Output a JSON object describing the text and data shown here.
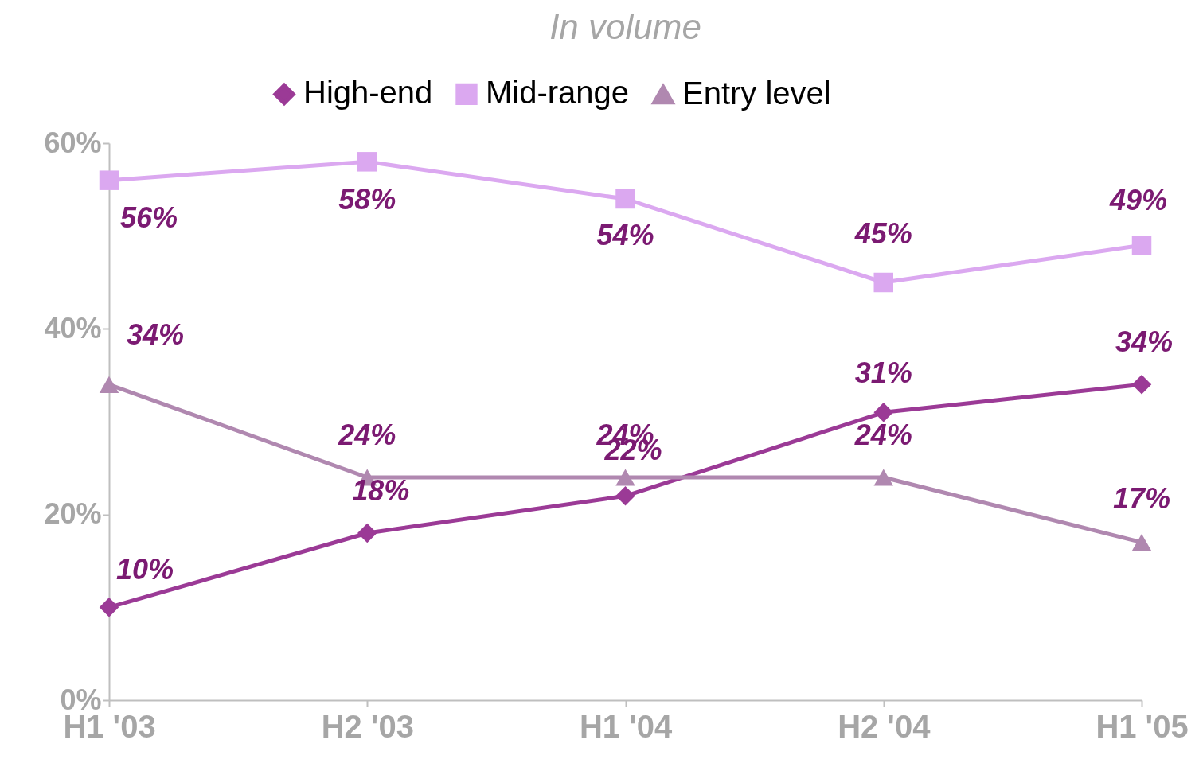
{
  "chart_data": {
    "type": "line",
    "title": "In volume",
    "categories": [
      "H1 '03",
      "H2 '03",
      "H1 '04",
      "H2 '04",
      "H1 '05"
    ],
    "series": [
      {
        "name": "High-end",
        "color": "#9b3a96",
        "marker": "diamond",
        "values": [
          10,
          18,
          22,
          31,
          34
        ],
        "value_labels": [
          "10%",
          "18%",
          "22%",
          "31%",
          "34%"
        ]
      },
      {
        "name": "Mid-range",
        "color": "#dba8f0",
        "marker": "square",
        "values": [
          56,
          58,
          54,
          45,
          49
        ],
        "value_labels": [
          "56%",
          "58%",
          "54%",
          "45%",
          "49%"
        ]
      },
      {
        "name": "Entry level",
        "color": "#b088b0",
        "marker": "triangle",
        "values": [
          34,
          24,
          24,
          24,
          17
        ],
        "value_labels": [
          "34%",
          "24%",
          "24%",
          "24%",
          "17%"
        ]
      }
    ],
    "ylim": [
      0,
      60
    ],
    "yticks": [
      {
        "value": 0,
        "label": "0%"
      },
      {
        "value": 20,
        "label": "20%"
      },
      {
        "value": 40,
        "label": "40%"
      },
      {
        "value": 60,
        "label": "60%"
      }
    ],
    "grid": false,
    "legend": "top"
  }
}
